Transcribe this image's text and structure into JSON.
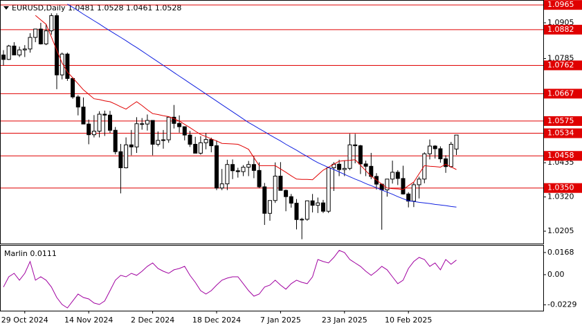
{
  "chart_data": [
    {
      "type": "candlestick",
      "title": "EURUSD,Daily  1.0481 1.0528 1.0461 1.0528",
      "categories": [
        null,
        null,
        null,
        null,
        "29 Oct 2024",
        null,
        null,
        null,
        null,
        null,
        null,
        null,
        null,
        null,
        null,
        null,
        "14 Nov 2024",
        null,
        null,
        null,
        null,
        null,
        null,
        null,
        null,
        null,
        null,
        null,
        "2 Dec 2024",
        null,
        null,
        null,
        null,
        null,
        null,
        null,
        null,
        null,
        null,
        null,
        "18 Dec 2024",
        null,
        null,
        null,
        null,
        null,
        null,
        null,
        null,
        null,
        null,
        null,
        "7 Jan 2025",
        null,
        null,
        null,
        null,
        null,
        null,
        null,
        null,
        null,
        null,
        null,
        "23 Jan 2025",
        null,
        null,
        null,
        null,
        null,
        null,
        null,
        null,
        null,
        null,
        null,
        "10 Feb 2025",
        null,
        null,
        null,
        null,
        null,
        null,
        null,
        null,
        null
      ],
      "open": [
        1.0797,
        1.0782,
        1.0827,
        1.0797,
        1.0814,
        1.0817,
        1.0856,
        1.0884,
        1.0834,
        1.0878,
        1.0929,
        1.073,
        1.08,
        1.0718,
        1.0656,
        1.0622,
        1.0565,
        1.0529,
        1.0541,
        1.0598,
        1.0595,
        1.0544,
        1.0472,
        1.0418,
        1.0495,
        1.0488,
        1.0566,
        1.0565,
        1.0577,
        1.0497,
        1.051,
        1.0512,
        1.0588,
        1.0567,
        1.0556,
        1.0528,
        1.0497,
        1.0467,
        1.0502,
        1.0513,
        1.0492,
        1.035,
        1.0364,
        1.0429,
        1.0408,
        1.0405,
        1.042,
        1.0429,
        1.0409,
        1.0354,
        1.0265,
        1.0308,
        1.039,
        1.0342,
        1.0321,
        1.0299,
        1.0244,
        1.0245,
        1.0307,
        1.0292,
        1.03,
        1.0272,
        1.0418,
        1.043,
        1.0412,
        1.0416,
        1.0495,
        1.0492,
        1.0431,
        1.0423,
        1.0389,
        1.0363,
        1.0344,
        1.038,
        1.0403,
        1.0382,
        1.033,
        1.0306,
        1.0361,
        1.038,
        1.0465,
        1.0491,
        1.0482,
        1.0448,
        1.0422,
        1.0481
      ],
      "high": [
        1.0813,
        1.0831,
        1.084,
        1.0825,
        1.083,
        1.087,
        1.0885,
        1.0905,
        1.09,
        1.0937,
        1.0937,
        1.0805,
        1.0805,
        1.0722,
        1.0662,
        1.0654,
        1.058,
        1.0595,
        1.0608,
        1.061,
        1.0609,
        1.0555,
        1.0498,
        1.052,
        1.0545,
        1.0588,
        1.0585,
        1.0597,
        1.0577,
        1.054,
        1.0545,
        1.059,
        1.0629,
        1.0594,
        1.0557,
        1.0542,
        1.0522,
        1.0524,
        1.0535,
        1.0519,
        1.051,
        1.0414,
        1.0445,
        1.0446,
        1.0418,
        1.0427,
        1.0441,
        1.0456,
        1.0436,
        1.0367,
        1.0309,
        1.0436,
        1.0437,
        1.0345,
        1.033,
        1.0313,
        1.025,
        1.0308,
        1.033,
        1.0318,
        1.031,
        1.042,
        1.0437,
        1.0445,
        1.0442,
        1.0532,
        1.0532,
        1.0495,
        1.0442,
        1.0468,
        1.04,
        1.0365,
        1.038,
        1.0442,
        1.041,
        1.0425,
        1.0336,
        1.0368,
        1.0388,
        1.047,
        1.0513,
        1.0494,
        1.049,
        1.046,
        1.0505,
        1.0528
      ],
      "low": [
        1.0761,
        1.078,
        1.08,
        1.079,
        1.079,
        1.0805,
        1.084,
        1.0832,
        1.083,
        1.0865,
        1.0682,
        1.0715,
        1.071,
        1.065,
        1.0594,
        1.0565,
        1.0497,
        1.052,
        1.052,
        1.0525,
        1.0535,
        1.0463,
        1.0332,
        1.0416,
        1.046,
        1.0468,
        1.0546,
        1.0543,
        1.046,
        1.049,
        1.0482,
        1.0502,
        1.055,
        1.0536,
        1.051,
        1.0488,
        1.0467,
        1.0462,
        1.048,
        1.047,
        1.0343,
        1.0343,
        1.0343,
        1.038,
        1.0385,
        1.039,
        1.039,
        1.0383,
        1.035,
        1.0226,
        1.024,
        1.03,
        1.0345,
        1.0272,
        1.0284,
        1.0211,
        1.0178,
        1.024,
        1.0268,
        1.0266,
        1.0266,
        1.0266,
        1.034,
        1.039,
        1.039,
        1.041,
        1.0433,
        1.0397,
        1.039,
        1.038,
        1.0345,
        1.021,
        1.0321,
        1.0365,
        1.036,
        1.0328,
        1.0285,
        1.0286,
        1.0315,
        1.0366,
        1.0446,
        1.0449,
        1.0435,
        1.0401,
        1.0418,
        1.0461
      ],
      "close": [
        1.0782,
        1.0827,
        1.0797,
        1.0814,
        1.0817,
        1.0856,
        1.0884,
        1.0834,
        1.0878,
        1.0929,
        1.073,
        1.08,
        1.0718,
        1.0656,
        1.0622,
        1.0565,
        1.0529,
        1.0541,
        1.0598,
        1.0595,
        1.0544,
        1.0472,
        1.0418,
        1.0495,
        1.0488,
        1.0566,
        1.0565,
        1.0577,
        1.0497,
        1.051,
        1.0512,
        1.0588,
        1.0567,
        1.0556,
        1.0528,
        1.0497,
        1.0467,
        1.0502,
        1.0513,
        1.0492,
        1.035,
        1.0364,
        1.0429,
        1.0408,
        1.0405,
        1.042,
        1.0429,
        1.0409,
        1.0354,
        1.0265,
        1.0308,
        1.039,
        1.0342,
        1.0321,
        1.0299,
        1.0244,
        1.0245,
        1.0307,
        1.0292,
        1.03,
        1.0272,
        1.0418,
        1.043,
        1.0412,
        1.0416,
        1.0495,
        1.0492,
        1.0431,
        1.0423,
        1.0389,
        1.0363,
        1.0344,
        1.038,
        1.0403,
        1.0382,
        1.033,
        1.0306,
        1.0361,
        1.038,
        1.0465,
        1.0491,
        1.0482,
        1.0448,
        1.0422,
        1.0497,
        1.0528
      ],
      "series": [
        {
          "color": "#e00000",
          "values": [
            null,
            null,
            null,
            null,
            null,
            null,
            1.093,
            1.0915,
            1.09,
            1.0857,
            1.0813,
            1.077,
            1.074,
            1.072,
            1.07,
            1.068,
            1.0665,
            1.065,
            1.0647,
            1.0643,
            1.064,
            1.0632,
            1.0623,
            1.0615,
            1.0628,
            1.064,
            1.0627,
            1.0613,
            1.06,
            1.0597,
            1.0593,
            1.059,
            1.0583,
            1.0575,
            1.0564,
            1.0553,
            1.0541,
            1.053,
            1.0523,
            1.0515,
            1.0508,
            1.05,
            1.0499,
            1.0498,
            1.0497,
            1.0489,
            1.048,
            1.0452,
            1.0425,
            1.0425,
            1.0425,
            1.0425,
            1.0414,
            1.0403,
            1.0391,
            1.038,
            1.0379,
            1.0379,
            1.0378,
            1.0394,
            1.041,
            1.042,
            1.043,
            1.044,
            1.0442,
            1.0443,
            1.0445,
            1.0427,
            1.0408,
            1.039,
            1.0377,
            1.0363,
            1.035,
            1.0348,
            1.0347,
            1.0345,
            1.0358,
            1.037,
            1.0398,
            1.0425,
            1.0423,
            1.0422,
            1.042,
            1.043,
            1.0421,
            1.0412
          ]
        },
        {
          "color": "#1020e0",
          "values": [
            null,
            null,
            null,
            null,
            null,
            null,
            null,
            null,
            null,
            null,
            null,
            null,
            1.0968,
            1.0957,
            1.0946,
            1.0934,
            1.0923,
            1.0912,
            1.0901,
            1.0889,
            1.0878,
            1.0867,
            1.0856,
            1.0845,
            1.0833,
            1.0822,
            1.081,
            1.0798,
            1.0786,
            1.0774,
            1.0762,
            1.075,
            1.0738,
            1.0726,
            1.0714,
            1.0702,
            1.069,
            1.0678,
            1.0666,
            1.0654,
            1.0642,
            1.063,
            1.0618,
            1.0606,
            1.0594,
            1.0582,
            1.057,
            1.056,
            1.0549,
            1.0539,
            1.0528,
            1.0518,
            1.0508,
            1.0497,
            1.0487,
            1.0477,
            1.0466,
            1.0456,
            1.0445,
            1.0435,
            1.0427,
            1.0419,
            1.0412,
            1.0404,
            1.0396,
            1.0388,
            1.038,
            1.0373,
            1.0365,
            1.0358,
            1.0351,
            1.0343,
            1.0336,
            1.0329,
            1.0321,
            1.0314,
            1.0307,
            1.0305,
            1.0302,
            1.03,
            1.0298,
            1.0295,
            1.0293,
            1.0291,
            1.0288,
            1.0286
          ]
        }
      ],
      "levels": {
        "color": "#e00000",
        "values": [
          1.0965,
          1.0882,
          1.0762,
          1.0667,
          1.0575,
          1.0534,
          1.0458,
          {
            "value": 1.035,
            "label": "1.0350"
          }
        ]
      },
      "ylim": [
        1.0168,
        1.097
      ],
      "yticks": [
        1.0905,
        1.0785,
        1.0435,
        {
          "value": 1.032,
          "label": "1.0320"
        },
        1.0205
      ]
    },
    {
      "type": "line",
      "title": "Marlin 0.0111",
      "series": [
        {
          "color": "#a000a0",
          "values": [
            -0.0094,
            -0.0016,
            0.001,
            -0.0042,
            0.001,
            0.01,
            -0.0042,
            -0.0016,
            -0.0042,
            -0.0094,
            -0.0173,
            -0.0226,
            -0.0252,
            -0.0199,
            -0.0147,
            -0.0173,
            -0.0184,
            -0.0215,
            -0.0226,
            -0.0199,
            -0.0121,
            -0.0042,
            -0.0005,
            -0.0016,
            0.001,
            -0.0005,
            0.0026,
            0.0063,
            0.0089,
            0.0047,
            0.0026,
            0.001,
            0.0037,
            0.0047,
            0.0063,
            -0.0005,
            -0.0058,
            -0.0121,
            -0.0147,
            -0.0121,
            -0.0079,
            -0.0042,
            -0.0026,
            -0.0016,
            -0.0016,
            -0.0068,
            -0.0121,
            -0.0163,
            -0.0147,
            -0.0094,
            -0.0079,
            -0.0042,
            -0.0079,
            -0.011,
            -0.0068,
            -0.0042,
            -0.0058,
            -0.0068,
            -0.0016,
            0.0115,
            0.01,
            0.0089,
            0.0131,
            0.0184,
            0.0168,
            0.0115,
            0.0089,
            0.0063,
            0.0026,
            -0.0005,
            0.0026,
            0.0063,
            0.0037,
            -0.0016,
            -0.0068,
            -0.0042,
            0.0047,
            0.01,
            0.0131,
            0.0115,
            0.0063,
            0.0089,
            0.0037,
            0.0115,
            0.0079,
            0.0111
          ]
        }
      ],
      "ylim": [
        -0.0268,
        0.022
      ],
      "yticks": [
        0.0168,
        {
          "value": 0,
          "label": "0.00"
        },
        -0.0229
      ]
    }
  ]
}
